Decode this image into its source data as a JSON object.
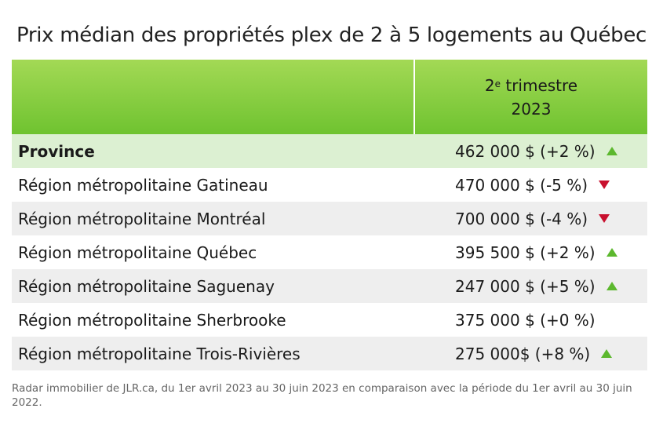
{
  "title": "Prix médian des propriétés plex de 2 à 5 logements au Québec",
  "header": {
    "period_num": "2",
    "period_sup": "e",
    "period_word": " trimestre",
    "year": "2023"
  },
  "colors": {
    "up": "#5cb82e",
    "down": "#c8102e",
    "header_top": "#a3d955",
    "header_bottom": "#6fc330"
  },
  "chart_data": {
    "type": "table",
    "columns": [
      "",
      "2e trimestre 2023"
    ],
    "rows": [
      {
        "name": "Province",
        "value": "462 000 $ (+2 %)",
        "median": 462000,
        "change_pct": 2,
        "trend": "up"
      },
      {
        "name": "Région métropolitaine Gatineau",
        "value": "470 000 $ (-5 %)",
        "median": 470000,
        "change_pct": -5,
        "trend": "down"
      },
      {
        "name": "Région métropolitaine Montréal",
        "value": "700 000 $ (-4 %)",
        "median": 700000,
        "change_pct": -4,
        "trend": "down"
      },
      {
        "name": "Région métropolitaine Québec",
        "value": "395 500 $ (+2 %)",
        "median": 395500,
        "change_pct": 2,
        "trend": "up"
      },
      {
        "name": "Région métropolitaine Saguenay",
        "value": "247 000 $ (+5 %)",
        "median": 247000,
        "change_pct": 5,
        "trend": "up"
      },
      {
        "name": "Région métropolitaine Sherbrooke",
        "value": "375 000 $ (+0 %)",
        "median": 375000,
        "change_pct": 0,
        "trend": "none"
      },
      {
        "name": "Région métropolitaine Trois-Rivières",
        "value": "275 000$ (+8 %)",
        "median": 275000,
        "change_pct": 8,
        "trend": "up"
      }
    ]
  },
  "footer": "Radar immobilier de JLR.ca, du 1er avril 2023 au 30 juin 2023 en comparaison avec la période du 1er avril au 30 juin 2022."
}
